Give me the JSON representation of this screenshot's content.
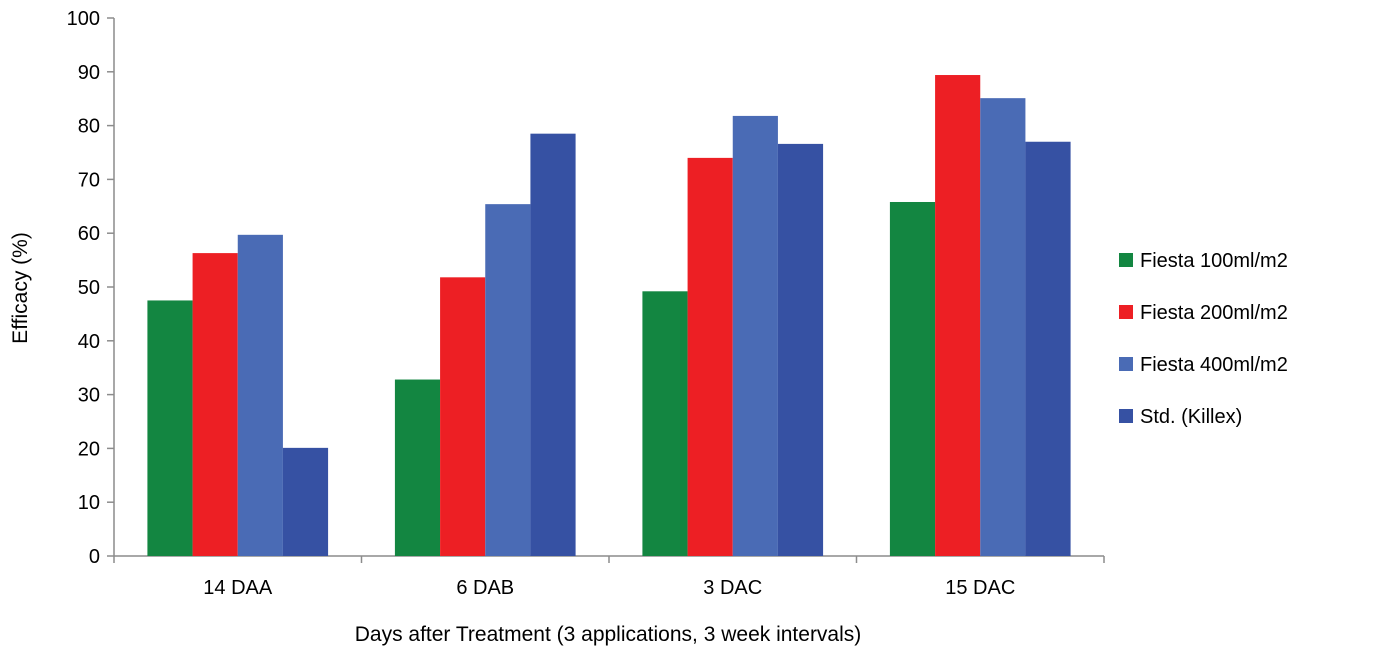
{
  "chart_data": {
    "type": "bar",
    "title": "",
    "xlabel": "Days after Treatment (3 applications, 3 week intervals)",
    "ylabel": "Efficacy (%)",
    "ylim": [
      0,
      100
    ],
    "yticks": [
      0,
      10,
      20,
      30,
      40,
      50,
      60,
      70,
      80,
      90,
      100
    ],
    "grid": false,
    "legend_position": "right",
    "categories": [
      "14 DAA",
      "6 DAB",
      "3 DAC",
      "15 DAC"
    ],
    "series": [
      {
        "name": "Fiesta 100ml/m2",
        "color": "#138641",
        "values": [
          47.5,
          32.8,
          49.2,
          65.8
        ]
      },
      {
        "name": "Fiesta 200ml/m2",
        "color": "#ed1f24",
        "values": [
          56.3,
          51.8,
          74.0,
          89.4
        ]
      },
      {
        "name": "Fiesta 400ml/m2",
        "color": "#4a6bb5",
        "values": [
          59.7,
          65.4,
          81.8,
          85.1
        ]
      },
      {
        "name": "Std. (Killex)",
        "color": "#3651a3",
        "values": [
          20.1,
          78.5,
          76.6,
          77.0
        ]
      }
    ]
  }
}
